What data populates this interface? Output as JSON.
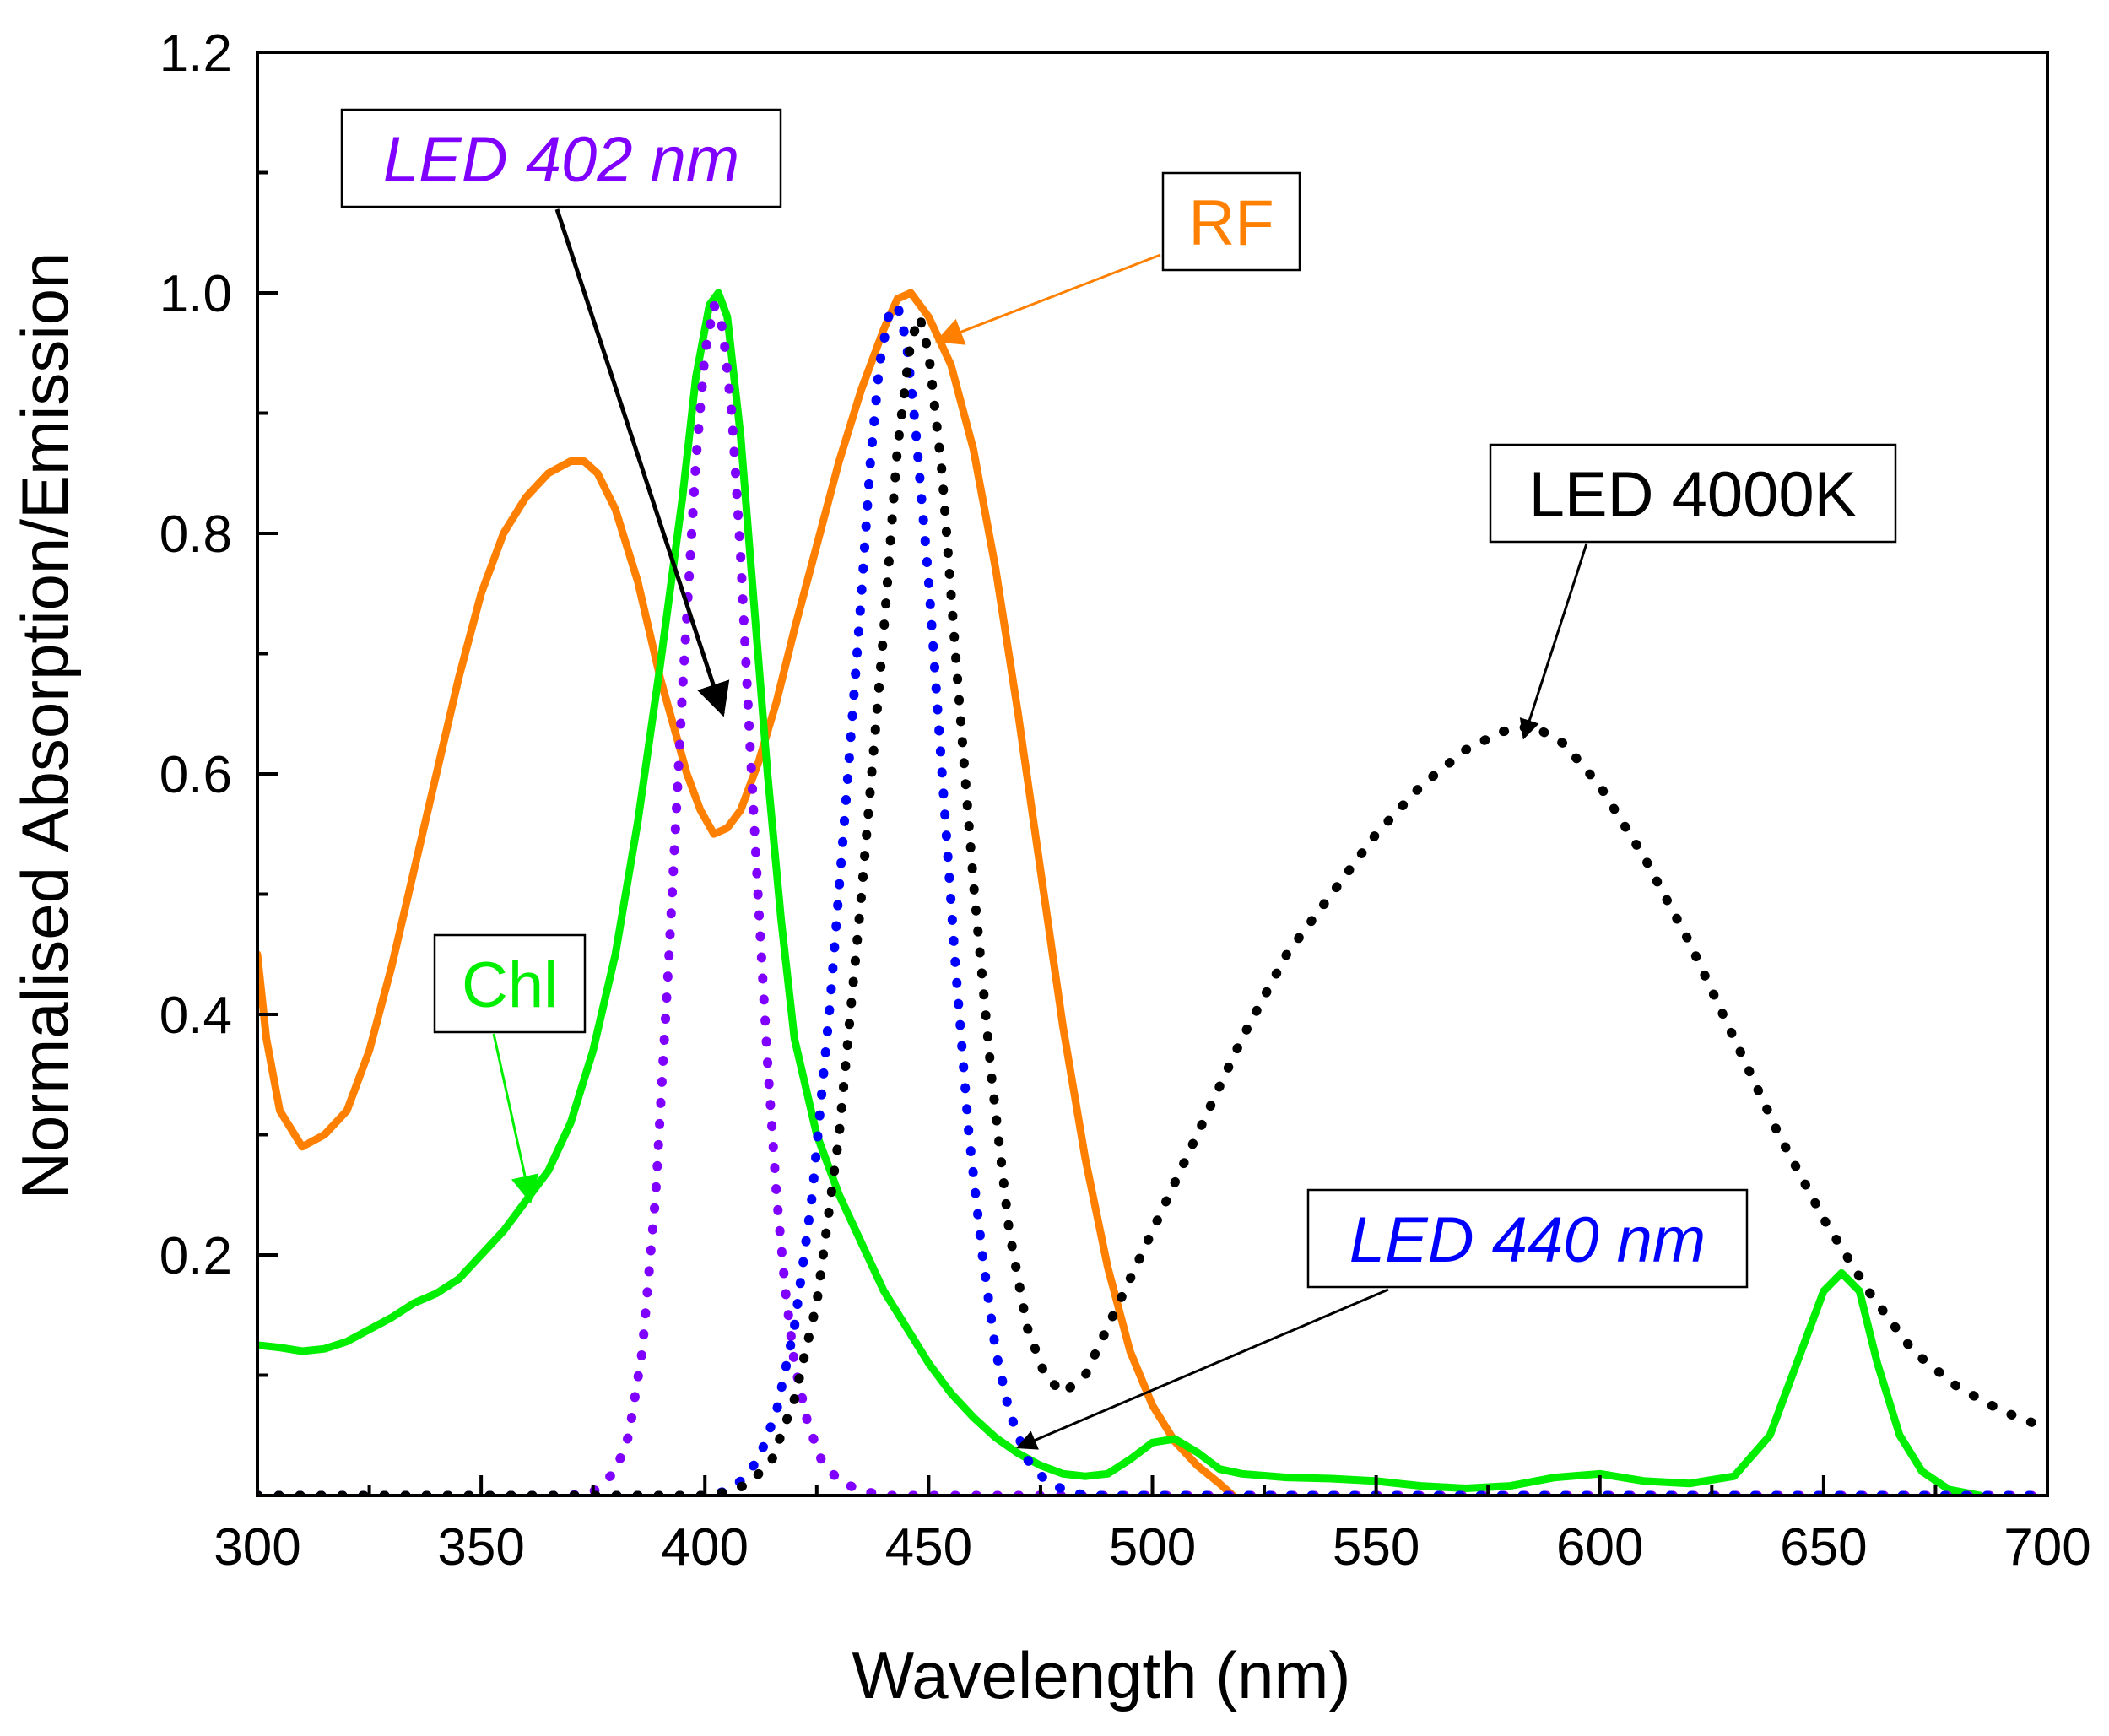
{
  "chart_data": {
    "type": "line",
    "title": "",
    "xlabel": "Wavelength (nm)",
    "ylabel": "Normalised Absorption/Emission",
    "xlim": [
      300,
      700
    ],
    "ylim": [
      0,
      1.2
    ],
    "x_ticks": [
      300,
      350,
      400,
      450,
      500,
      550,
      600,
      650,
      700
    ],
    "x_tick_labels": [
      "300",
      "350",
      "400",
      "450",
      "500",
      "550",
      "600",
      "650",
      "700"
    ],
    "y_ticks": [
      0.2,
      0.4,
      0.6,
      0.8,
      1.0,
      1.2
    ],
    "y_tick_labels": [
      "0.2",
      "0.4",
      "0.6",
      "0.8",
      "1.0",
      "1.2"
    ],
    "grid": false,
    "series": [
      {
        "name": "RF",
        "color": "#ff8000",
        "style": "solid",
        "points": [
          [
            300,
            0.45
          ],
          [
            302,
            0.38
          ],
          [
            305,
            0.32
          ],
          [
            310,
            0.29
          ],
          [
            315,
            0.3
          ],
          [
            320,
            0.32
          ],
          [
            325,
            0.37
          ],
          [
            330,
            0.44
          ],
          [
            335,
            0.52
          ],
          [
            340,
            0.6
          ],
          [
            345,
            0.68
          ],
          [
            350,
            0.75
          ],
          [
            355,
            0.8
          ],
          [
            360,
            0.83
          ],
          [
            365,
            0.85
          ],
          [
            370,
            0.86
          ],
          [
            373,
            0.86
          ],
          [
            376,
            0.85
          ],
          [
            380,
            0.82
          ],
          [
            385,
            0.76
          ],
          [
            390,
            0.68
          ],
          [
            393,
            0.64
          ],
          [
            396,
            0.6
          ],
          [
            399,
            0.57
          ],
          [
            402,
            0.55
          ],
          [
            405,
            0.555
          ],
          [
            408,
            0.57
          ],
          [
            412,
            0.61
          ],
          [
            416,
            0.66
          ],
          [
            420,
            0.72
          ],
          [
            425,
            0.79
          ],
          [
            430,
            0.86
          ],
          [
            435,
            0.92
          ],
          [
            440,
            0.97
          ],
          [
            443,
            0.995
          ],
          [
            446,
            1.0
          ],
          [
            450,
            0.98
          ],
          [
            455,
            0.94
          ],
          [
            460,
            0.87
          ],
          [
            465,
            0.77
          ],
          [
            470,
            0.65
          ],
          [
            475,
            0.52
          ],
          [
            480,
            0.39
          ],
          [
            485,
            0.28
          ],
          [
            490,
            0.19
          ],
          [
            495,
            0.12
          ],
          [
            500,
            0.075
          ],
          [
            505,
            0.045
          ],
          [
            510,
            0.025
          ],
          [
            515,
            0.01
          ],
          [
            518,
            0.0
          ]
        ]
      },
      {
        "name": "Chl",
        "color": "#00ee00",
        "style": "solid",
        "points": [
          [
            300,
            0.125
          ],
          [
            305,
            0.123
          ],
          [
            310,
            0.12
          ],
          [
            315,
            0.122
          ],
          [
            320,
            0.128
          ],
          [
            325,
            0.138
          ],
          [
            330,
            0.148
          ],
          [
            335,
            0.16
          ],
          [
            340,
            0.168
          ],
          [
            345,
            0.18
          ],
          [
            350,
            0.2
          ],
          [
            355,
            0.22
          ],
          [
            360,
            0.245
          ],
          [
            365,
            0.27
          ],
          [
            370,
            0.31
          ],
          [
            375,
            0.37
          ],
          [
            380,
            0.45
          ],
          [
            385,
            0.56
          ],
          [
            390,
            0.69
          ],
          [
            395,
            0.83
          ],
          [
            398,
            0.93
          ],
          [
            401,
            0.99
          ],
          [
            403,
            1.0
          ],
          [
            405,
            0.98
          ],
          [
            408,
            0.88
          ],
          [
            411,
            0.74
          ],
          [
            414,
            0.6
          ],
          [
            417,
            0.48
          ],
          [
            420,
            0.38
          ],
          [
            425,
            0.3
          ],
          [
            430,
            0.25
          ],
          [
            435,
            0.21
          ],
          [
            440,
            0.17
          ],
          [
            445,
            0.14
          ],
          [
            450,
            0.11
          ],
          [
            455,
            0.085
          ],
          [
            460,
            0.065
          ],
          [
            465,
            0.048
          ],
          [
            470,
            0.035
          ],
          [
            475,
            0.025
          ],
          [
            480,
            0.018
          ],
          [
            485,
            0.016
          ],
          [
            490,
            0.018
          ],
          [
            495,
            0.03
          ],
          [
            500,
            0.044
          ],
          [
            505,
            0.047
          ],
          [
            510,
            0.036
          ],
          [
            515,
            0.022
          ],
          [
            520,
            0.018
          ],
          [
            530,
            0.015
          ],
          [
            540,
            0.014
          ],
          [
            550,
            0.012
          ],
          [
            560,
            0.008
          ],
          [
            570,
            0.006
          ],
          [
            580,
            0.008
          ],
          [
            590,
            0.015
          ],
          [
            600,
            0.018
          ],
          [
            610,
            0.012
          ],
          [
            620,
            0.01
          ],
          [
            630,
            0.016
          ],
          [
            638,
            0.05
          ],
          [
            645,
            0.12
          ],
          [
            650,
            0.17
          ],
          [
            654,
            0.185
          ],
          [
            658,
            0.17
          ],
          [
            662,
            0.11
          ],
          [
            667,
            0.05
          ],
          [
            672,
            0.02
          ],
          [
            678,
            0.005
          ],
          [
            685,
            0.0
          ]
        ]
      },
      {
        "name": "LED 402 nm",
        "color": "#8000ff",
        "style": "dotted",
        "points": [
          [
            300,
            0.0
          ],
          [
            370,
            0.0
          ],
          [
            375,
            0.003
          ],
          [
            380,
            0.02
          ],
          [
            383,
            0.05
          ],
          [
            386,
            0.12
          ],
          [
            389,
            0.25
          ],
          [
            392,
            0.45
          ],
          [
            395,
            0.67
          ],
          [
            398,
            0.86
          ],
          [
            400,
            0.95
          ],
          [
            402,
            0.99
          ],
          [
            404,
            0.97
          ],
          [
            406,
            0.9
          ],
          [
            408,
            0.78
          ],
          [
            410,
            0.63
          ],
          [
            412,
            0.49
          ],
          [
            414,
            0.36
          ],
          [
            416,
            0.25
          ],
          [
            418,
            0.17
          ],
          [
            420,
            0.11
          ],
          [
            423,
            0.06
          ],
          [
            426,
            0.03
          ],
          [
            430,
            0.012
          ],
          [
            435,
            0.004
          ],
          [
            440,
            0.0
          ],
          [
            700,
            0.0
          ]
        ]
      },
      {
        "name": "LED 440 nm",
        "color": "#0000ff",
        "style": "dotted",
        "points": [
          [
            300,
            0.0
          ],
          [
            400,
            0.0
          ],
          [
            404,
            0.003
          ],
          [
            408,
            0.012
          ],
          [
            412,
            0.03
          ],
          [
            416,
            0.07
          ],
          [
            420,
            0.14
          ],
          [
            424,
            0.25
          ],
          [
            428,
            0.41
          ],
          [
            432,
            0.6
          ],
          [
            435,
            0.75
          ],
          [
            437,
            0.86
          ],
          [
            439,
            0.94
          ],
          [
            441,
            0.98
          ],
          [
            443,
            0.99
          ],
          [
            445,
            0.96
          ],
          [
            447,
            0.89
          ],
          [
            450,
            0.76
          ],
          [
            453,
            0.6
          ],
          [
            456,
            0.44
          ],
          [
            459,
            0.3
          ],
          [
            462,
            0.2
          ],
          [
            465,
            0.12
          ],
          [
            468,
            0.07
          ],
          [
            472,
            0.03
          ],
          [
            476,
            0.013
          ],
          [
            480,
            0.005
          ],
          [
            485,
            0.0
          ],
          [
            700,
            0.0
          ]
        ]
      },
      {
        "name": "LED 4000K",
        "color": "#000000",
        "style": "dotted",
        "points": [
          [
            300,
            0.0
          ],
          [
            400,
            0.0
          ],
          [
            405,
            0.003
          ],
          [
            410,
            0.01
          ],
          [
            415,
            0.03
          ],
          [
            420,
            0.08
          ],
          [
            425,
            0.16
          ],
          [
            430,
            0.3
          ],
          [
            435,
            0.5
          ],
          [
            440,
            0.72
          ],
          [
            443,
            0.87
          ],
          [
            446,
            0.96
          ],
          [
            448,
            0.98
          ],
          [
            450,
            0.95
          ],
          [
            453,
            0.85
          ],
          [
            456,
            0.7
          ],
          [
            460,
            0.51
          ],
          [
            464,
            0.35
          ],
          [
            468,
            0.22
          ],
          [
            472,
            0.14
          ],
          [
            476,
            0.1
          ],
          [
            480,
            0.085
          ],
          [
            485,
            0.1
          ],
          [
            490,
            0.14
          ],
          [
            500,
            0.22
          ],
          [
            510,
            0.3
          ],
          [
            520,
            0.38
          ],
          [
            530,
            0.45
          ],
          [
            540,
            0.5
          ],
          [
            550,
            0.55
          ],
          [
            560,
            0.59
          ],
          [
            570,
            0.62
          ],
          [
            578,
            0.635
          ],
          [
            585,
            0.64
          ],
          [
            592,
            0.625
          ],
          [
            600,
            0.59
          ],
          [
            610,
            0.53
          ],
          [
            620,
            0.46
          ],
          [
            630,
            0.38
          ],
          [
            640,
            0.3
          ],
          [
            650,
            0.23
          ],
          [
            660,
            0.17
          ],
          [
            670,
            0.12
          ],
          [
            680,
            0.09
          ],
          [
            690,
            0.07
          ],
          [
            697,
            0.06
          ]
        ]
      }
    ],
    "annotations": [
      {
        "text": "LED 402 nm",
        "series": "LED 402 nm",
        "italic": true,
        "color": "#8000ff",
        "arrow_to": [
          404,
          0.65
        ]
      },
      {
        "text": "RF",
        "series": "RF",
        "italic": false,
        "color": "#ff8000",
        "arrow_to": [
          452,
          0.96
        ]
      },
      {
        "text": "LED 4000K",
        "series": "LED 4000K",
        "italic": false,
        "color": "#000000",
        "arrow_to": [
          583,
          0.63
        ]
      },
      {
        "text": "Chl",
        "series": "Chl",
        "italic": false,
        "color": "#00ee00",
        "arrow_to": [
          361,
          0.245
        ]
      },
      {
        "text": "LED 440 nm",
        "series": "LED 440 nm",
        "italic": true,
        "color": "#0000ff",
        "arrow_to": [
          470,
          0.04
        ]
      }
    ]
  }
}
